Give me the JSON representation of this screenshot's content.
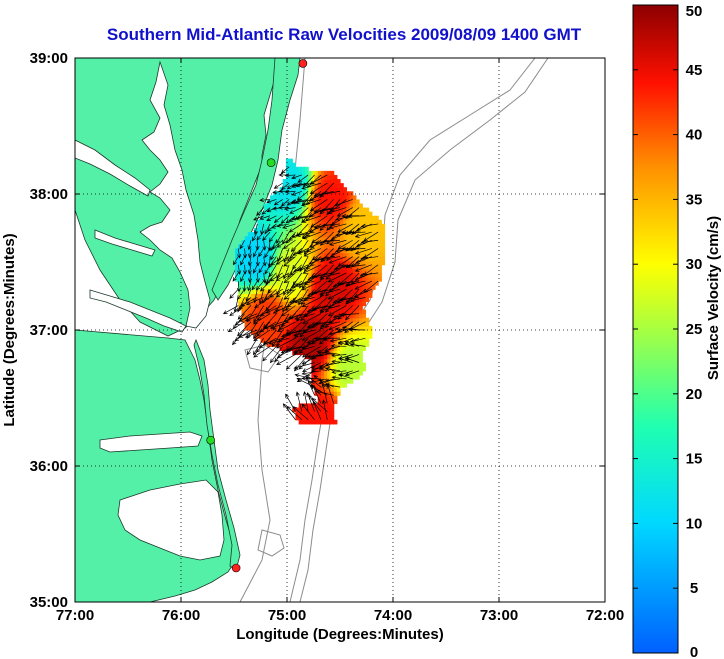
{
  "chart_data": {
    "type": "map",
    "title": "Southern Mid-Atlantic Raw Velocities 2009/08/09 1400 GMT",
    "xlabel": "Longitude (Degrees:Minutes)",
    "ylabel": "Latitude (Degrees:Minutes)",
    "xlim": [
      -77,
      -72
    ],
    "ylim": [
      35,
      39
    ],
    "x_ticks": [
      {
        "value": -77,
        "label": "77:00"
      },
      {
        "value": -76,
        "label": "76:00"
      },
      {
        "value": -75,
        "label": "75:00"
      },
      {
        "value": -74,
        "label": "74:00"
      },
      {
        "value": -73,
        "label": "73:00"
      },
      {
        "value": -72,
        "label": "72:00"
      }
    ],
    "y_ticks": [
      {
        "value": 35,
        "label": "35:00"
      },
      {
        "value": 36,
        "label": "36:00"
      },
      {
        "value": 37,
        "label": "37:00"
      },
      {
        "value": 38,
        "label": "38:00"
      },
      {
        "value": 39,
        "label": "39:00"
      }
    ],
    "grid": true,
    "colorbar": {
      "label": "Surface Velocity (cm/s)",
      "range": [
        0,
        50
      ],
      "ticks": [
        0,
        5,
        10,
        15,
        20,
        25,
        30,
        35,
        40,
        45,
        50
      ],
      "colormap": "jet",
      "placement": "right"
    },
    "land_color": "#55f0a8",
    "hf_radar_sites": [
      {
        "lon": -74.85,
        "lat": 38.96,
        "color": "#ff2020"
      },
      {
        "lon": -75.15,
        "lat": 38.23,
        "color": "#22dd22"
      },
      {
        "lon": -75.72,
        "lat": 36.19,
        "color": "#22dd22"
      },
      {
        "lon": -75.48,
        "lat": 35.25,
        "color": "#ff2020"
      }
    ],
    "velocity_region_samples": [
      {
        "lon": -75.0,
        "lat": 38.05,
        "speed": 12,
        "dir_deg": 200
      },
      {
        "lon": -74.6,
        "lat": 37.95,
        "speed": 44,
        "dir_deg": 210
      },
      {
        "lon": -74.3,
        "lat": 37.75,
        "speed": 34,
        "dir_deg": 200
      },
      {
        "lon": -75.3,
        "lat": 37.5,
        "speed": 10,
        "dir_deg": 260
      },
      {
        "lon": -75.0,
        "lat": 37.4,
        "speed": 28,
        "dir_deg": 230
      },
      {
        "lon": -74.6,
        "lat": 37.3,
        "speed": 46,
        "dir_deg": 210
      },
      {
        "lon": -75.2,
        "lat": 37.1,
        "speed": 42,
        "dir_deg": 220
      },
      {
        "lon": -74.8,
        "lat": 36.9,
        "speed": 48,
        "dir_deg": 210
      },
      {
        "lon": -74.4,
        "lat": 36.7,
        "speed": 26,
        "dir_deg": 180
      },
      {
        "lon": -74.7,
        "lat": 36.35,
        "speed": 44,
        "dir_deg": 120
      }
    ]
  }
}
